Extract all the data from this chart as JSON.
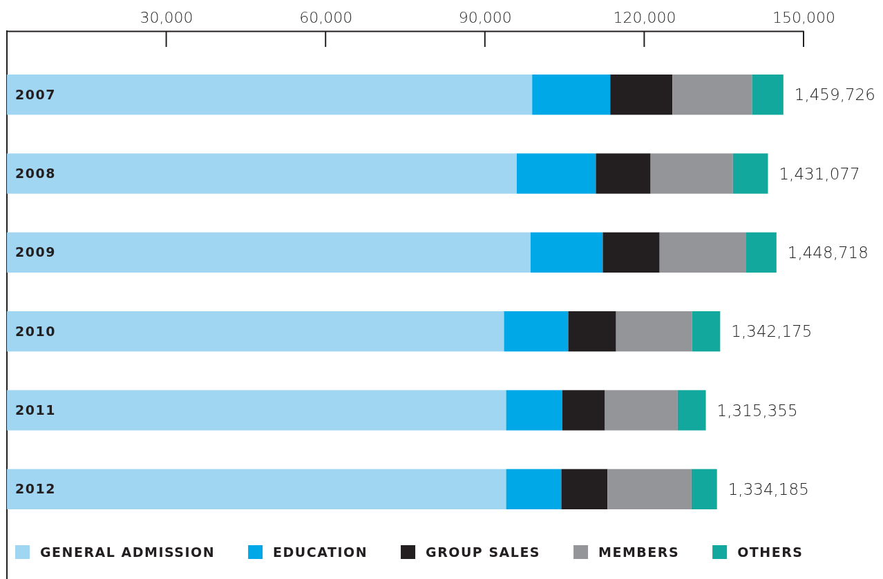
{
  "chart_data": {
    "type": "bar",
    "orientation": "horizontal",
    "stacked": true,
    "categories": [
      "2007",
      "2008",
      "2009",
      "2010",
      "2011",
      "2012"
    ],
    "series": [
      {
        "name": "GENERAL ADMISSION",
        "color": "#a0d6f2",
        "values": [
          98900,
          96000,
          98600,
          93600,
          94000,
          94000
        ]
      },
      {
        "name": "EDUCATION",
        "color": "#00a8e8",
        "values": [
          14700,
          14900,
          13600,
          12100,
          10600,
          10400
        ]
      },
      {
        "name": "GROUP SALES",
        "color": "#231f20",
        "values": [
          11700,
          10300,
          10700,
          9000,
          8000,
          8700
        ]
      },
      {
        "name": "MEMBERS",
        "color": "#939598",
        "values": [
          15000,
          15500,
          16300,
          14300,
          13700,
          15800
        ]
      },
      {
        "name": "OTHERS",
        "color": "#12a89d",
        "values": [
          5900,
          6600,
          5700,
          5300,
          5300,
          4800
        ]
      }
    ],
    "annotations": [
      {
        "text": "1,459,726",
        "x": 146200,
        "y": "2007"
      },
      {
        "text": "1,431,077",
        "x": 143300,
        "y": "2008"
      },
      {
        "text": "1,448,718",
        "x": 144900,
        "y": "2009"
      },
      {
        "text": "1,342,175",
        "x": 134300,
        "y": "2010"
      },
      {
        "text": "1,315,355",
        "x": 131600,
        "y": "2011"
      },
      {
        "text": "1,334,185",
        "x": 133700,
        "y": "2012"
      }
    ],
    "xlim": [
      0,
      150000
    ],
    "xticks": [
      {
        "value": 30000,
        "label": "30,000"
      },
      {
        "value": 60000,
        "label": "60,000"
      },
      {
        "value": 90000,
        "label": "90,000"
      },
      {
        "value": 120000,
        "label": "120,000"
      },
      {
        "value": 150000,
        "label": "150,000"
      }
    ],
    "grid": false,
    "legend": "bottom"
  }
}
